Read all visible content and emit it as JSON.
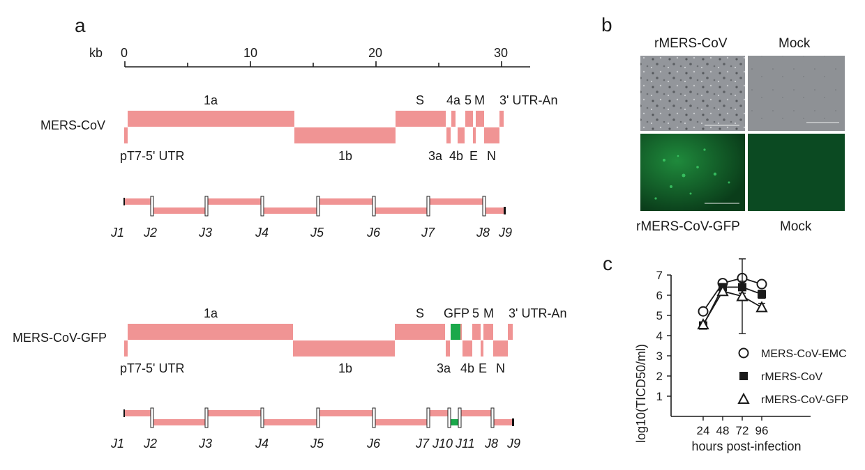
{
  "panel_a": {
    "letter": "a",
    "scale": {
      "unit_label": "kb",
      "ticks": [
        "0",
        "10",
        "20",
        "30"
      ]
    },
    "genome1": {
      "name": "MERS-CoV",
      "top_labels": [
        "1a",
        "S",
        "4a",
        "5",
        "M",
        "3' UTR-An"
      ],
      "bottom_labels": [
        "pT7-5' UTR",
        "1b",
        "3a",
        "4b",
        "E",
        "N"
      ]
    },
    "junctions1": [
      "J1",
      "J2",
      "J3",
      "J4",
      "J5",
      "J6",
      "J7",
      "J8",
      "J9"
    ],
    "genome2": {
      "name": "MERS-CoV-GFP",
      "top_labels": [
        "1a",
        "S",
        "GFP",
        "5",
        "M",
        "3' UTR-An"
      ],
      "bottom_labels": [
        "pT7-5' UTR",
        "1b",
        "3a",
        "4b",
        "E",
        "N"
      ]
    },
    "junctions2": [
      "J1",
      "J2",
      "J3",
      "J4",
      "J5",
      "J6",
      "J7",
      "J10",
      "J11",
      "J8",
      "J9"
    ]
  },
  "panel_b": {
    "letter": "b",
    "col_labels": [
      "rMERS-CoV",
      "Mock"
    ],
    "row2_labels": [
      "rMERS-CoV-GFP",
      "Mock"
    ]
  },
  "panel_c": {
    "letter": "c"
  },
  "colors": {
    "gene": "#f09494",
    "gfp": "#1aa84a",
    "axis": "#1a1a1a"
  },
  "chart_data": {
    "type": "line",
    "x": [
      24,
      48,
      72,
      96
    ],
    "xlabel": "hours post-infection",
    "ylabel": "log10(TICD50/ml)",
    "ylim": [
      0,
      7
    ],
    "yticks": [
      1,
      2,
      3,
      4,
      5,
      6,
      7
    ],
    "legend_position": "lower-right",
    "series": [
      {
        "name": "MERS-CoV-EMC",
        "marker": "open-circle",
        "values": [
          5.2,
          6.6,
          6.85,
          6.55
        ],
        "err": [
          0.15,
          0.1,
          0.1,
          0.15
        ]
      },
      {
        "name": "rMERS-CoV",
        "marker": "filled-square",
        "values": [
          4.5,
          6.4,
          6.4,
          6.05
        ],
        "err": [
          0.1,
          0.1,
          0.3,
          0.2
        ]
      },
      {
        "name": "rMERS-CoV-GFP",
        "marker": "open-triangle",
        "values": [
          4.55,
          6.2,
          5.95,
          5.4
        ],
        "err": [
          0.1,
          0.1,
          1.85,
          0.2
        ]
      }
    ]
  }
}
